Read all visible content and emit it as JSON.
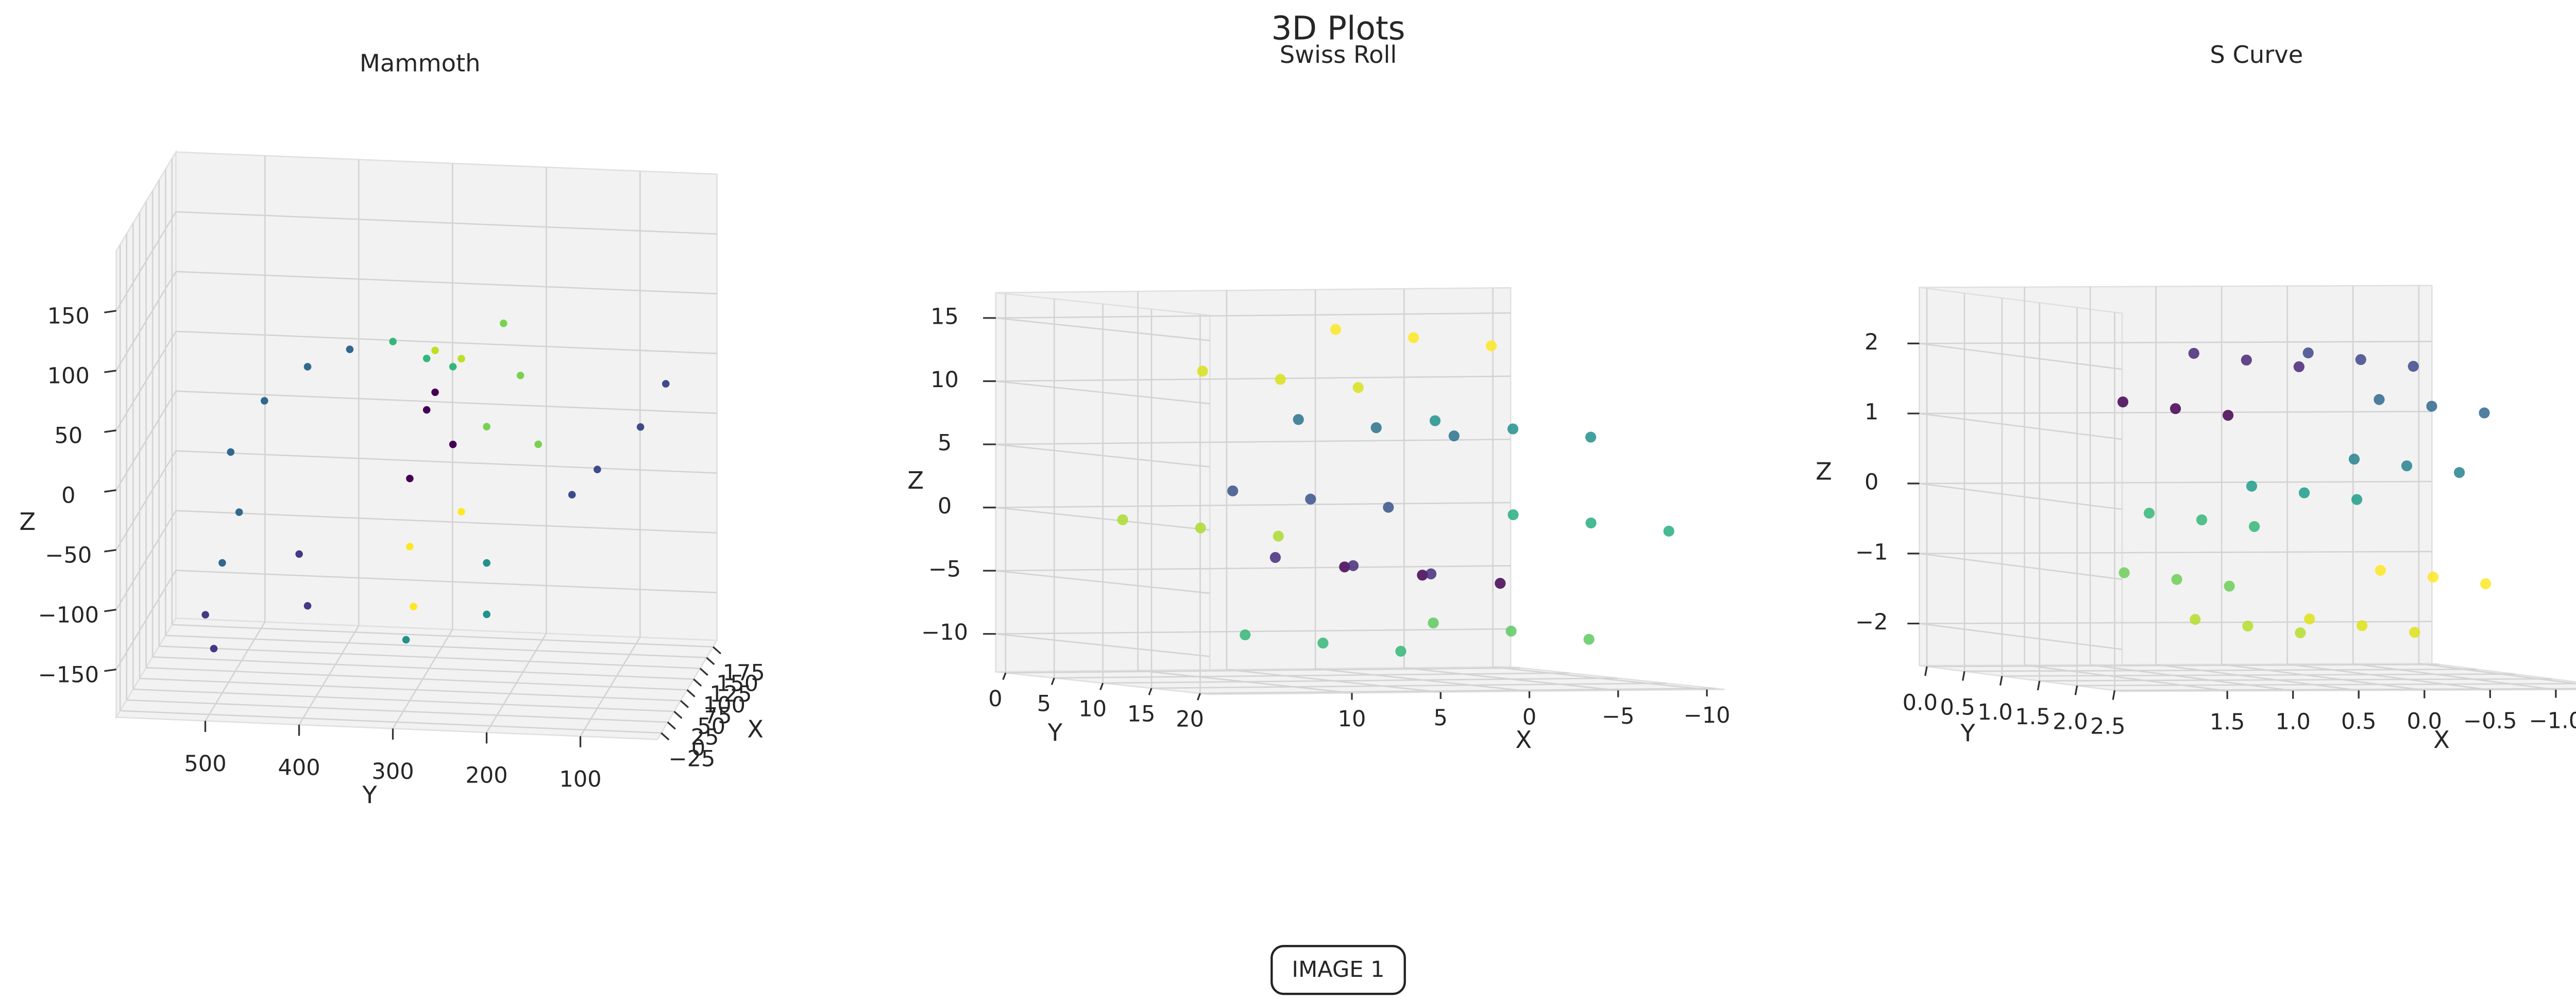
{
  "title": "3D Plots",
  "caption": "IMAGE 1",
  "chart_data": [
    {
      "type": "scatter3d",
      "title": "Mammoth",
      "xlabel": "X",
      "ylabel": "Y",
      "zlabel": "Z",
      "xlim": [
        -40,
        190
      ],
      "ylim": [
        18,
        595
      ],
      "zlim": [
        -190,
        200
      ],
      "xticks": [
        {
          "value": -25,
          "label": "−25"
        },
        0,
        25,
        50,
        75,
        100,
        125,
        150,
        175
      ],
      "yticks": [
        100,
        200,
        300,
        400,
        500
      ],
      "zticks": [
        {
          "value": -150,
          "label": "−150"
        },
        {
          "value": -100,
          "label": "−100"
        },
        {
          "value": -50,
          "label": "−50"
        },
        0,
        50,
        100,
        150
      ],
      "grid": true,
      "series": [
        {
          "color": "#31688e",
          "x": [
            0,
            0,
            0,
            0,
            0,
            0
          ],
          "y": [
            484,
            448,
            402,
            357,
            475,
            493
          ],
          "z": [
            21,
            65,
            95,
            111,
            -29,
            -72
          ]
        },
        {
          "color": "#443983",
          "x": [
            0,
            0,
            0,
            0
          ],
          "y": [
            511,
            502,
            411,
            402
          ],
          "z": [
            -116,
            -144,
            -62,
            -105
          ]
        },
        {
          "color": "#35b779",
          "x": [
            0,
            0,
            0
          ],
          "y": [
            311,
            275,
            247
          ],
          "z": [
            119,
            106,
            100
          ]
        },
        {
          "color": "#bddf26",
          "x": [
            0,
            0
          ],
          "y": [
            238,
            266
          ],
          "z": [
            107,
            113
          ]
        },
        {
          "color": "#7ad151",
          "x": [
            0,
            0,
            0,
            0
          ],
          "y": [
            193,
            175,
            156,
            211
          ],
          "z": [
            138,
            95,
            38,
            51
          ]
        },
        {
          "color": "#440154",
          "x": [
            0,
            0,
            0,
            0
          ],
          "y": [
            275,
            247,
            293,
            266
          ],
          "z": [
            63,
            35,
            5,
            78
          ]
        },
        {
          "color": "#3e4a89",
          "x": [
            0,
            0,
            0,
            0
          ],
          "y": [
            120,
            93,
            47,
            20
          ],
          "z": [
            -3,
            19,
            56,
            93
          ]
        },
        {
          "color": "#fde725",
          "x": [
            0,
            0,
            0
          ],
          "y": [
            293,
            289,
            238
          ],
          "z": [
            -52,
            -102,
            -21
          ]
        },
        {
          "color": "#21918c",
          "x": [
            0,
            0,
            0
          ],
          "y": [
            297,
            211,
            211
          ],
          "z": [
            -130,
            -106,
            -63
          ]
        }
      ]
    },
    {
      "type": "scatter3d",
      "title": "Swiss Roll",
      "xlabel": "X",
      "ylabel": "Y",
      "zlabel": "Z",
      "xlim": [
        -11,
        18
      ],
      "ylim": [
        -1,
        21
      ],
      "zlim": [
        -13,
        17
      ],
      "xticks": [
        {
          "value": -10,
          "label": "−10"
        },
        {
          "value": -5,
          "label": "−5"
        },
        0,
        5,
        10
      ],
      "yticks": [
        0,
        5,
        10,
        15,
        20
      ],
      "zticks": [
        {
          "value": -10,
          "label": "−10"
        },
        {
          "value": -5,
          "label": "−5"
        },
        0,
        5,
        10,
        15
      ],
      "grid": true,
      "series": [
        {
          "color": "#440154",
          "x": [
            0.0,
            0.0,
            0.0
          ],
          "y": [
            2,
            10,
            18
          ],
          "z": [
            -4.7,
            -4.7,
            -4.7
          ]
        },
        {
          "color": "#472d7b",
          "x": [
            3.9,
            3.9,
            3.9
          ],
          "y": [
            2,
            10,
            18
          ],
          "z": [
            -3.9,
            -3.9,
            -3.9
          ]
        },
        {
          "color": "#3b528b",
          "x": [
            6.3,
            6.3,
            6.3
          ],
          "y": [
            2,
            10,
            18
          ],
          "z": [
            1.4,
            1.4,
            1.4
          ]
        },
        {
          "color": "#2c728e",
          "x": [
            2.6,
            2.6,
            2.6
          ],
          "y": [
            2,
            10,
            18
          ],
          "z": [
            7.0,
            7.0,
            7.0
          ]
        },
        {
          "color": "#21918c",
          "x": [
            -5.1,
            -5.1,
            -5.1
          ],
          "y": [
            2,
            10,
            18
          ],
          "z": [
            6.8,
            6.8,
            6.8
          ]
        },
        {
          "color": "#28ae80",
          "x": [
            -9.5,
            -9.5,
            -9.5
          ],
          "y": [
            2,
            10,
            18
          ],
          "z": [
            -0.7,
            -0.7,
            -0.7
          ]
        },
        {
          "color": "#5ec962",
          "x": [
            -5.0,
            -5.0,
            -5.0
          ],
          "y": [
            2,
            10,
            18
          ],
          "z": [
            -9.2,
            -9.2,
            -9.2
          ]
        },
        {
          "color": "#35b779",
          "x": [
            5.6,
            5.6,
            5.6
          ],
          "y": [
            2,
            10,
            18
          ],
          "z": [
            -10.0,
            -10.0,
            -10.0
          ]
        },
        {
          "color": "#addc30",
          "x": [
            12.5,
            12.5,
            12.5
          ],
          "y": [
            2,
            10,
            18
          ],
          "z": [
            -0.8,
            -0.8,
            -0.8
          ]
        },
        {
          "color": "#d8e219",
          "x": [
            8.0,
            8.0,
            8.0
          ],
          "y": [
            2,
            10,
            18
          ],
          "z": [
            10.9,
            10.9,
            10.9
          ]
        },
        {
          "color": "#fde725",
          "x": [
            0.5,
            0.5,
            0.5
          ],
          "y": [
            2,
            10,
            18
          ],
          "z": [
            14.1,
            14.1,
            14.1
          ]
        }
      ]
    },
    {
      "type": "scatter3d",
      "title": "S Curve",
      "xlabel": "X",
      "ylabel": "Y",
      "zlabel": "Z",
      "xlim": [
        -1.6,
        2.3
      ],
      "ylim": [
        -0.1,
        2.6
      ],
      "zlim": [
        -2.6,
        2.8
      ],
      "xticks": [
        {
          "value": -1.5,
          "label": "−1.5"
        },
        {
          "value": -1.0,
          "label": "−1.0"
        },
        {
          "value": -0.5,
          "label": "−0.5"
        },
        {
          "value": 0,
          "label": "0.0"
        },
        0.5,
        {
          "value": 1,
          "label": "1.0"
        },
        1.5
      ],
      "yticks": [
        {
          "value": 0,
          "label": "0.0"
        },
        0.5,
        {
          "value": 1,
          "label": "1.0"
        },
        1.5,
        {
          "value": 2,
          "label": "2.0"
        },
        2.5
      ],
      "zticks": [
        {
          "value": -2,
          "label": "−2"
        },
        {
          "value": -1,
          "label": "−1"
        },
        0,
        1,
        2
      ],
      "grid": true,
      "series": [
        {
          "color": "#440154",
          "x": [
            0.98,
            0.98,
            0.98
          ],
          "y": [
            0.3,
            1.0,
            1.7
          ],
          "z": [
            1.21,
            1.21,
            1.21
          ]
        },
        {
          "color": "#482878",
          "x": [
            0.44,
            0.44,
            0.44
          ],
          "y": [
            0.3,
            1.0,
            1.7
          ],
          "z": [
            1.9,
            1.9,
            1.9
          ]
        },
        {
          "color": "#3e4989",
          "x": [
            -0.43,
            -0.43,
            -0.43
          ],
          "y": [
            0.3,
            1.0,
            1.7
          ],
          "z": [
            1.9,
            1.9,
            1.9
          ]
        },
        {
          "color": "#31688e",
          "x": [
            -0.97,
            -0.97,
            -0.97
          ],
          "y": [
            0.3,
            1.0,
            1.7
          ],
          "z": [
            1.23,
            1.23,
            1.23
          ]
        },
        {
          "color": "#26828e",
          "x": [
            -0.78,
            -0.78,
            -0.78
          ],
          "y": [
            0.3,
            1.0,
            1.7
          ],
          "z": [
            0.38,
            0.38,
            0.38
          ]
        },
        {
          "color": "#1f9e89",
          "x": [
            0,
            0,
            0
          ],
          "y": [
            0.3,
            1.0,
            1.7
          ],
          "z": [
            0,
            0,
            0
          ]
        },
        {
          "color": "#35b779",
          "x": [
            0.78,
            0.78,
            0.78
          ],
          "y": [
            0.3,
            1.0,
            1.7
          ],
          "z": [
            -0.38,
            -0.38,
            -0.38
          ]
        },
        {
          "color": "#6ece58",
          "x": [
            0.97,
            0.97,
            0.97
          ],
          "y": [
            0.3,
            1.0,
            1.7
          ],
          "z": [
            -1.23,
            -1.23,
            -1.23
          ]
        },
        {
          "color": "#b5de2b",
          "x": [
            0.43,
            0.43,
            0.43
          ],
          "y": [
            0.3,
            1.0,
            1.7
          ],
          "z": [
            -1.9,
            -1.9,
            -1.9
          ]
        },
        {
          "color": "#dde318",
          "x": [
            -0.44,
            -0.44,
            -0.44
          ],
          "y": [
            0.3,
            1.0,
            1.7
          ],
          "z": [
            -1.9,
            -1.9,
            -1.9
          ]
        },
        {
          "color": "#fde725",
          "x": [
            -0.98,
            -0.98,
            -0.98
          ],
          "y": [
            0.3,
            1.0,
            1.7
          ],
          "z": [
            -1.21,
            -1.21,
            -1.21
          ]
        }
      ]
    }
  ]
}
